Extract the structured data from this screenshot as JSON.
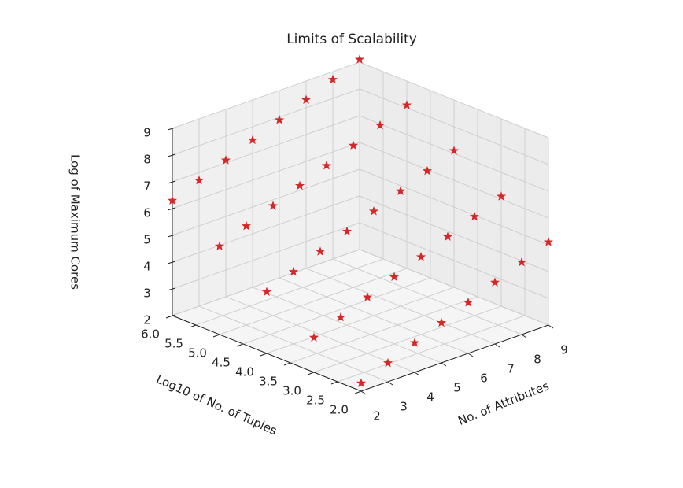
{
  "chart_data": {
    "type": "scatter3d",
    "title": "Limits of Scalability",
    "xlabel": "No. of Attributes",
    "ylabel": "Log10 of No. of Tuples",
    "zlabel": "Log of Maximum Cores",
    "color": "#d62728",
    "marker": "star",
    "grid": true,
    "xlim": [
      2,
      9
    ],
    "ylim": [
      2,
      6
    ],
    "zlim": [
      2,
      9
    ],
    "xticks": [
      2,
      3,
      4,
      5,
      6,
      7,
      8,
      9
    ],
    "yticks": [
      {
        "value": 2,
        "label": "2.0"
      },
      2.5,
      {
        "value": 3,
        "label": "3.0"
      },
      3.5,
      {
        "value": 4,
        "label": "4.0"
      },
      4.5,
      {
        "value": 5,
        "label": "5.0"
      },
      5.5,
      {
        "value": 6,
        "label": "6.0"
      }
    ],
    "zticks": [
      2,
      3,
      4,
      5,
      6,
      7,
      8,
      9
    ],
    "x": [
      2,
      3,
      4,
      5,
      6,
      7,
      8,
      9,
      2,
      3,
      4,
      5,
      6,
      7,
      8,
      9,
      2,
      3,
      4,
      5,
      6,
      7,
      8,
      9,
      2,
      3,
      4,
      5,
      6,
      7,
      8,
      9,
      2,
      3,
      4,
      5,
      6,
      7,
      8,
      9
    ],
    "y": [
      6,
      6,
      6,
      6,
      6,
      6,
      6,
      6,
      5,
      5,
      5,
      5,
      5,
      5,
      5,
      5,
      4,
      4,
      4,
      4,
      4,
      4,
      4,
      4,
      3,
      3,
      3,
      3,
      3,
      3,
      3,
      3,
      2,
      2,
      2,
      2,
      2,
      2,
      2,
      2
    ],
    "z": [
      6.3,
      6.7,
      7.1,
      7.5,
      7.9,
      8.3,
      8.7,
      9.1,
      5.3,
      5.7,
      6.1,
      6.5,
      6.9,
      7.3,
      7.7,
      8.1,
      4.3,
      4.7,
      5.1,
      5.5,
      5.9,
      6.3,
      6.7,
      7.1,
      3.3,
      3.7,
      4.1,
      4.5,
      4.9,
      5.3,
      5.7,
      6.1,
      2.3,
      2.7,
      3.1,
      3.5,
      3.9,
      4.3,
      4.7,
      5.1
    ]
  }
}
